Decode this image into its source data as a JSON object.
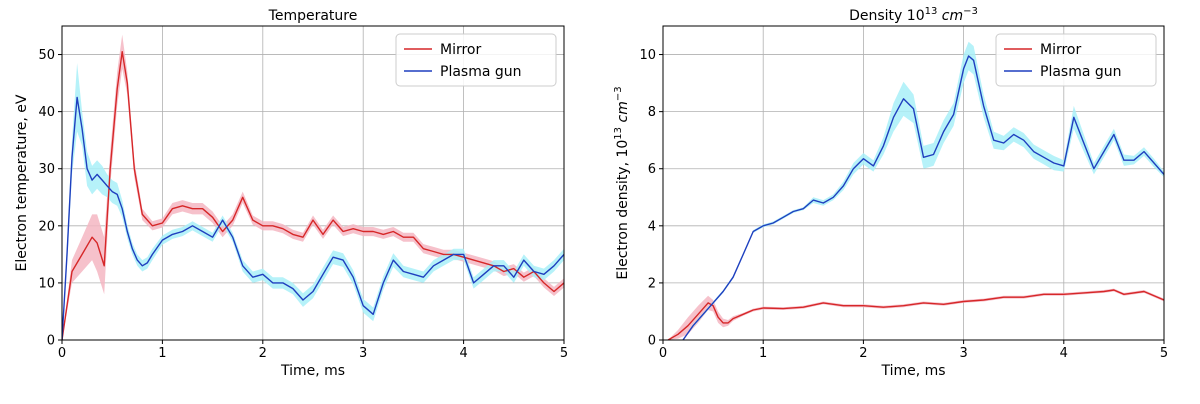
{
  "chart_data": [
    {
      "type": "line",
      "title": "Temperature",
      "title_parts": [],
      "xlabel": "Time, ms",
      "ylabel": "Electron temperature, eV",
      "ylabel_parts": [],
      "xlim": [
        0,
        5
      ],
      "ylim": [
        0,
        55
      ],
      "xticks": [
        0,
        1,
        2,
        3,
        4,
        5
      ],
      "yticks": [
        0,
        10,
        20,
        30,
        40,
        50
      ],
      "grid": true,
      "legend_position": "top-right",
      "series": [
        {
          "name": "Mirror",
          "color": "#d62728",
          "band_color": "#f4b6c2",
          "x": [
            0,
            0.1,
            0.2,
            0.3,
            0.35,
            0.42,
            0.48,
            0.55,
            0.6,
            0.65,
            0.72,
            0.8,
            0.9,
            1.0,
            1.1,
            1.2,
            1.3,
            1.4,
            1.5,
            1.6,
            1.7,
            1.8,
            1.9,
            2.0,
            2.1,
            2.2,
            2.3,
            2.4,
            2.5,
            2.6,
            2.7,
            2.8,
            2.9,
            3.0,
            3.1,
            3.2,
            3.3,
            3.4,
            3.5,
            3.6,
            3.7,
            3.8,
            3.9,
            4.0,
            4.1,
            4.2,
            4.3,
            4.4,
            4.5,
            4.6,
            4.7,
            4.8,
            4.9,
            5.0
          ],
          "y": [
            0,
            12,
            15,
            18,
            17,
            13,
            30,
            44,
            50.5,
            45,
            30,
            22,
            20,
            20.5,
            23,
            23.5,
            23,
            23,
            21.5,
            19,
            21,
            25,
            21,
            20,
            20,
            19.5,
            18.5,
            18,
            21,
            18.5,
            21,
            19,
            19.5,
            19,
            19,
            18.5,
            19,
            18,
            18,
            16,
            15.5,
            15,
            15,
            14.5,
            14,
            13.5,
            13,
            12,
            12.5,
            11,
            12,
            10,
            8.5,
            10
          ],
          "band": [
            0,
            2,
            3,
            4,
            5,
            5,
            3,
            3,
            3,
            2,
            1.5,
            1,
            0.8,
            0.8,
            1,
            1,
            1,
            1,
            1,
            1,
            1,
            1,
            0.8,
            0.8,
            0.8,
            0.8,
            0.8,
            0.8,
            0.8,
            0.8,
            0.8,
            0.8,
            0.8,
            0.8,
            0.8,
            0.8,
            0.8,
            0.8,
            0.8,
            0.8,
            0.8,
            0.8,
            0.8,
            0.8,
            0.8,
            0.8,
            0.8,
            0.8,
            0.8,
            0.8,
            0.8,
            0.8,
            0.8,
            0.8
          ]
        },
        {
          "name": "Plasma gun",
          "color": "#1f3fbf",
          "band_color": "#a9f0f8",
          "x": [
            0,
            0.05,
            0.1,
            0.15,
            0.2,
            0.25,
            0.3,
            0.35,
            0.4,
            0.45,
            0.5,
            0.55,
            0.6,
            0.65,
            0.7,
            0.75,
            0.8,
            0.85,
            0.9,
            1.0,
            1.1,
            1.2,
            1.3,
            1.4,
            1.5,
            1.6,
            1.7,
            1.8,
            1.9,
            2.0,
            2.1,
            2.2,
            2.3,
            2.4,
            2.5,
            2.6,
            2.7,
            2.8,
            2.9,
            3.0,
            3.1,
            3.2,
            3.3,
            3.4,
            3.5,
            3.6,
            3.7,
            3.8,
            3.9,
            4.0,
            4.1,
            4.2,
            4.3,
            4.4,
            4.5,
            4.6,
            4.7,
            4.8,
            4.9,
            5.0
          ],
          "y": [
            0,
            15,
            32,
            42.5,
            37,
            30,
            28,
            29,
            28,
            27,
            26,
            25.5,
            23,
            19,
            16,
            14,
            13,
            13.5,
            15,
            17.5,
            18.5,
            19,
            20,
            19,
            18,
            21,
            18,
            13,
            11,
            11.5,
            10,
            10,
            9,
            7,
            8.5,
            11.5,
            14.5,
            14,
            11,
            6,
            4.5,
            10,
            14,
            12,
            11.5,
            11,
            13,
            14,
            15,
            15,
            10,
            11.5,
            13,
            13,
            11,
            14,
            12,
            11.5,
            13,
            15
          ],
          "band": [
            0,
            2,
            3,
            6,
            3,
            3,
            2.5,
            2.5,
            2.5,
            2,
            2,
            2,
            1.5,
            1.2,
            1,
            1,
            1,
            1,
            1,
            0.8,
            0.8,
            0.8,
            0.8,
            0.8,
            0.8,
            0.8,
            0.8,
            1,
            1,
            1,
            1,
            1,
            1,
            1.2,
            1.2,
            1.2,
            1.2,
            1.2,
            1.2,
            1.2,
            1.2,
            1.2,
            1.2,
            1,
            1,
            1,
            1,
            1,
            1,
            1,
            1,
            1,
            1,
            1,
            1,
            1,
            1,
            1,
            1,
            1
          ]
        }
      ]
    },
    {
      "type": "line",
      "title": "",
      "title_parts": [
        {
          "t": "Density 10"
        },
        {
          "t": "13",
          "sup": true
        },
        {
          "t": " "
        },
        {
          "t": "cm",
          "it": true
        },
        {
          "t": "−3",
          "sup": true
        }
      ],
      "xlabel": "Time, ms",
      "ylabel": "",
      "ylabel_parts": [
        {
          "t": "Electron density, 10"
        },
        {
          "t": "13",
          "sup": true
        },
        {
          "t": " "
        },
        {
          "t": "cm",
          "it": true
        },
        {
          "t": "−3",
          "sup": true
        }
      ],
      "xlim": [
        0,
        5
      ],
      "ylim": [
        0,
        11
      ],
      "xticks": [
        0,
        1,
        2,
        3,
        4,
        5
      ],
      "yticks": [
        0,
        2,
        4,
        6,
        8,
        10
      ],
      "grid": true,
      "legend_position": "top-right",
      "series": [
        {
          "name": "Mirror",
          "color": "#d62728",
          "band_color": "#f4b6c2",
          "x": [
            0.05,
            0.15,
            0.25,
            0.35,
            0.45,
            0.5,
            0.55,
            0.6,
            0.65,
            0.7,
            0.8,
            0.9,
            1.0,
            1.2,
            1.4,
            1.6,
            1.8,
            2.0,
            2.2,
            2.4,
            2.6,
            2.8,
            3.0,
            3.2,
            3.4,
            3.6,
            3.8,
            4.0,
            4.2,
            4.4,
            4.5,
            4.6,
            4.8,
            5.0
          ],
          "y": [
            0,
            0.2,
            0.5,
            0.9,
            1.3,
            1.2,
            0.8,
            0.6,
            0.6,
            0.75,
            0.9,
            1.05,
            1.12,
            1.1,
            1.15,
            1.3,
            1.2,
            1.2,
            1.15,
            1.2,
            1.3,
            1.25,
            1.35,
            1.4,
            1.5,
            1.5,
            1.6,
            1.6,
            1.65,
            1.7,
            1.75,
            1.6,
            1.7,
            1.4
          ],
          "band": [
            0,
            0.15,
            0.3,
            0.3,
            0.25,
            0.2,
            0.2,
            0.15,
            0.1,
            0.08,
            0.05,
            0.05,
            0.05,
            0.05,
            0.05,
            0.05,
            0.05,
            0.05,
            0.05,
            0.05,
            0.05,
            0.05,
            0.05,
            0.05,
            0.05,
            0.05,
            0.05,
            0.05,
            0.05,
            0.05,
            0.05,
            0.05,
            0.05,
            0.05
          ]
        },
        {
          "name": "Plasma gun",
          "color": "#1f3fbf",
          "band_color": "#a9f0f8",
          "x": [
            0.2,
            0.3,
            0.4,
            0.5,
            0.6,
            0.7,
            0.8,
            0.9,
            1.0,
            1.1,
            1.2,
            1.3,
            1.4,
            1.5,
            1.6,
            1.7,
            1.8,
            1.9,
            2.0,
            2.1,
            2.2,
            2.3,
            2.4,
            2.5,
            2.6,
            2.7,
            2.8,
            2.9,
            3.0,
            3.05,
            3.1,
            3.2,
            3.3,
            3.4,
            3.5,
            3.6,
            3.7,
            3.8,
            3.9,
            4.0,
            4.1,
            4.2,
            4.3,
            4.4,
            4.5,
            4.6,
            4.7,
            4.8,
            4.9,
            5.0
          ],
          "y": [
            0,
            0.5,
            0.9,
            1.3,
            1.7,
            2.2,
            3.0,
            3.8,
            4.0,
            4.1,
            4.3,
            4.5,
            4.6,
            4.9,
            4.8,
            5.0,
            5.4,
            6.0,
            6.35,
            6.1,
            6.8,
            7.8,
            8.45,
            8.1,
            6.4,
            6.5,
            7.3,
            7.9,
            9.5,
            9.95,
            9.8,
            8.2,
            7.0,
            6.9,
            7.2,
            7.0,
            6.6,
            6.4,
            6.2,
            6.1,
            7.8,
            6.9,
            6.0,
            6.6,
            7.2,
            6.3,
            6.3,
            6.6,
            6.2,
            5.8
          ],
          "band": [
            0,
            0.05,
            0.05,
            0.05,
            0.05,
            0.05,
            0.05,
            0.05,
            0.05,
            0.05,
            0.05,
            0.05,
            0.05,
            0.1,
            0.1,
            0.1,
            0.15,
            0.2,
            0.2,
            0.2,
            0.3,
            0.5,
            0.6,
            0.5,
            0.4,
            0.4,
            0.4,
            0.4,
            0.5,
            0.5,
            0.5,
            0.4,
            0.3,
            0.25,
            0.25,
            0.25,
            0.25,
            0.25,
            0.25,
            0.2,
            0.4,
            0.3,
            0.2,
            0.2,
            0.2,
            0.2,
            0.15,
            0.15,
            0.15,
            0.1
          ]
        }
      ]
    }
  ]
}
